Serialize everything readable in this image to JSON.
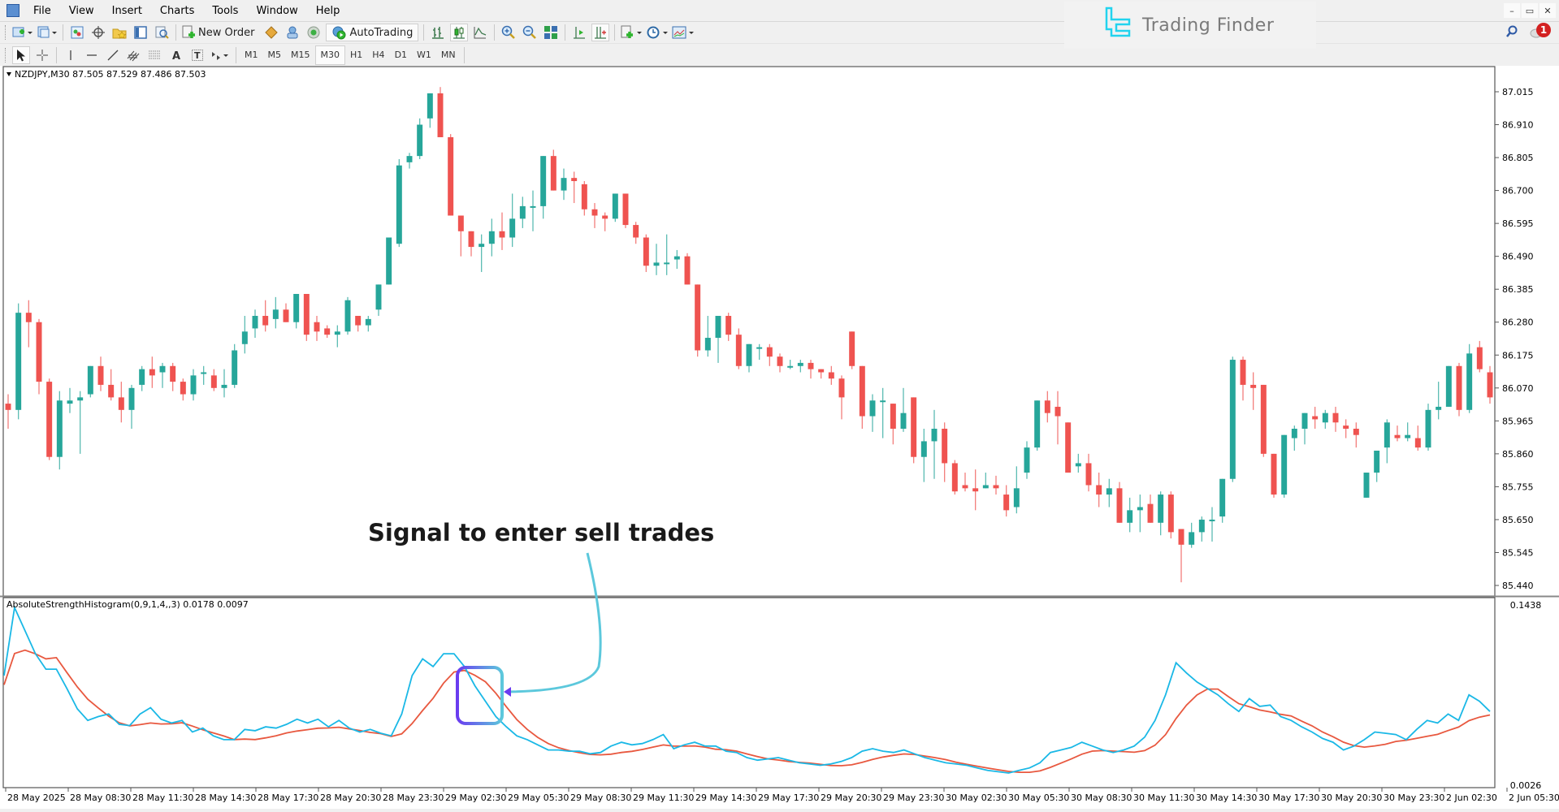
{
  "menu": {
    "items": [
      "File",
      "View",
      "Insert",
      "Charts",
      "Tools",
      "Window",
      "Help"
    ]
  },
  "window_controls": {
    "minimize": "–",
    "restore": "▭",
    "close": "✕"
  },
  "toolbar1": {
    "new_order_label": "New Order",
    "autotrading_label": "AutoTrading",
    "icons": [
      "new-chart-icon",
      "profiles-icon",
      "market-watch-icon",
      "data-window-icon",
      "navigator-icon",
      "terminal-icon",
      "strategy-tester-icon",
      "new-order-icon",
      "metaeditor-icon",
      "signals-icon",
      "market-icon",
      "autotrading-icon",
      "bar-chart-icon",
      "candlesticks-icon",
      "line-chart-icon",
      "zoom-in-icon",
      "zoom-out-icon",
      "tile-windows-icon",
      "chart-shift-icon",
      "autoscroll-icon",
      "indicators-icon",
      "periods-icon",
      "templates-icon"
    ]
  },
  "toolbar2": {
    "timeframes": [
      "M1",
      "M5",
      "M15",
      "M30",
      "H1",
      "H4",
      "D1",
      "W1",
      "MN"
    ],
    "active_timeframe": "M30",
    "drawing_tools": [
      "cursor-icon",
      "crosshair-icon",
      "vertical-line-icon",
      "horizontal-line-icon",
      "trendline-icon",
      "equidistant-channel-icon",
      "fibonacci-icon",
      "text-icon",
      "text-label-icon",
      "arrows-icon"
    ]
  },
  "brand": {
    "name": "Trading Finder",
    "accent": "#22d3ee"
  },
  "notifications": {
    "count": "1"
  },
  "chart": {
    "header": "NZDJPY,M30  87.505 87.529 87.486 87.503",
    "symbol": "NZDJPY",
    "timeframe": "M30",
    "ohlc": {
      "open": "87.505",
      "high": "87.529",
      "low": "87.486",
      "close": "87.503"
    },
    "annotation": "Signal to enter sell trades",
    "colors": {
      "bull": "#26a69a",
      "bear": "#ef5350",
      "indicator_main": "#1ab8e6",
      "indicator_signal": "#e8583f",
      "frame_purple": "#6a3cf0",
      "frame_cyan": "#5cc8dc"
    }
  },
  "indicator": {
    "label": "AbsoluteStrengthHistogram(0,9,1,4,,3) 0.0178 0.0097",
    "name": "AbsoluteStrengthHistogram",
    "params": "(0,9,1,4,,3)",
    "value1": "0.0178",
    "value2": "0.0097",
    "axis_max": "0.1438",
    "axis_min": "0.0026"
  },
  "chart_data": {
    "type": "candlestick",
    "title": "NZDJPY,M30",
    "price_axis": {
      "ticks": [
        "87.015",
        "86.910",
        "86.805",
        "86.700",
        "86.595",
        "86.490",
        "86.385",
        "86.280",
        "86.175",
        "86.070",
        "85.965",
        "85.860",
        "85.755",
        "85.650",
        "85.545",
        "85.440"
      ],
      "range": [
        85.4,
        87.08
      ]
    },
    "time_axis": [
      "28 May 2025",
      "28 May 08:30",
      "28 May 11:30",
      "28 May 14:30",
      "28 May 17:30",
      "28 May 20:30",
      "28 May 23:30",
      "29 May 02:30",
      "29 May 05:30",
      "29 May 08:30",
      "29 May 11:30",
      "29 May 14:30",
      "29 May 17:30",
      "29 May 20:30",
      "29 May 23:30",
      "30 May 02:30",
      "30 May 05:30",
      "30 May 08:30",
      "30 May 11:30",
      "30 May 14:30",
      "30 May 17:30",
      "30 May 20:30",
      "30 May 23:30",
      "2 Jun 02:30",
      "2 Jun 05:30"
    ],
    "candles": [
      [
        86.02,
        86.05,
        85.94,
        86.0
      ],
      [
        86.0,
        86.34,
        85.97,
        86.31
      ],
      [
        86.31,
        86.35,
        86.2,
        86.28
      ],
      [
        86.28,
        86.29,
        86.05,
        86.09
      ],
      [
        86.09,
        86.1,
        85.84,
        85.85
      ],
      [
        85.85,
        86.06,
        85.81,
        86.03
      ],
      [
        86.02,
        86.07,
        85.99,
        86.03
      ],
      [
        86.03,
        86.06,
        85.86,
        86.04
      ],
      [
        86.05,
        86.12,
        86.04,
        86.14
      ],
      [
        86.14,
        86.17,
        86.06,
        86.08
      ],
      [
        86.08,
        86.13,
        86.03,
        86.04
      ],
      [
        86.04,
        86.09,
        85.96,
        86.0
      ],
      [
        86.0,
        86.08,
        85.94,
        86.07
      ],
      [
        86.08,
        86.14,
        86.06,
        86.13
      ],
      [
        86.13,
        86.17,
        86.07,
        86.11
      ],
      [
        86.12,
        86.15,
        86.07,
        86.14
      ],
      [
        86.14,
        86.15,
        86.06,
        86.09
      ],
      [
        86.09,
        86.1,
        86.03,
        86.05
      ],
      [
        86.05,
        86.13,
        86.03,
        86.11
      ],
      [
        86.12,
        86.14,
        86.08,
        86.12
      ],
      [
        86.11,
        86.13,
        86.06,
        86.07
      ],
      [
        86.07,
        86.13,
        86.04,
        86.08
      ],
      [
        86.08,
        86.21,
        86.07,
        86.19
      ],
      [
        86.21,
        86.3,
        86.18,
        86.25
      ],
      [
        86.26,
        86.32,
        86.23,
        86.3
      ],
      [
        86.3,
        86.35,
        86.25,
        86.27
      ],
      [
        86.29,
        86.36,
        86.26,
        86.32
      ],
      [
        86.32,
        86.34,
        86.28,
        86.28
      ],
      [
        86.28,
        86.37,
        86.26,
        86.37
      ],
      [
        86.37,
        86.37,
        86.22,
        86.24
      ],
      [
        86.28,
        86.3,
        86.22,
        86.25
      ],
      [
        86.26,
        86.27,
        86.23,
        86.24
      ],
      [
        86.24,
        86.27,
        86.2,
        86.25
      ],
      [
        86.25,
        86.36,
        86.24,
        86.35
      ],
      [
        86.3,
        86.3,
        86.25,
        86.27
      ],
      [
        86.27,
        86.3,
        86.25,
        86.29
      ],
      [
        86.32,
        86.36,
        86.3,
        86.4
      ],
      [
        86.4,
        86.55,
        86.4,
        86.55
      ],
      [
        86.53,
        86.8,
        86.52,
        86.78
      ],
      [
        86.79,
        86.82,
        86.77,
        86.81
      ],
      [
        86.81,
        86.93,
        86.8,
        86.91
      ],
      [
        86.93,
        87.01,
        86.9,
        87.01
      ],
      [
        87.01,
        87.03,
        86.88,
        86.87
      ],
      [
        86.87,
        86.88,
        86.64,
        86.62
      ],
      [
        86.62,
        86.6,
        86.49,
        86.57
      ],
      [
        86.57,
        86.57,
        86.49,
        86.52
      ],
      [
        86.52,
        86.56,
        86.44,
        86.53
      ],
      [
        86.53,
        86.61,
        86.49,
        86.57
      ],
      [
        86.57,
        86.63,
        86.51,
        86.55
      ],
      [
        86.55,
        86.69,
        86.52,
        86.61
      ],
      [
        86.61,
        86.68,
        86.58,
        86.65
      ],
      [
        86.65,
        86.7,
        86.57,
        86.65
      ],
      [
        86.65,
        86.81,
        86.61,
        86.81
      ],
      [
        86.81,
        86.83,
        86.7,
        86.7
      ],
      [
        86.7,
        86.77,
        86.67,
        86.74
      ],
      [
        86.74,
        86.76,
        86.66,
        86.73
      ],
      [
        86.72,
        86.73,
        86.62,
        86.64
      ],
      [
        86.64,
        86.66,
        86.58,
        86.62
      ],
      [
        86.62,
        86.63,
        86.57,
        86.61
      ],
      [
        86.61,
        86.69,
        86.6,
        86.69
      ],
      [
        86.69,
        86.69,
        86.58,
        86.59
      ],
      [
        86.59,
        86.6,
        86.53,
        86.55
      ],
      [
        86.55,
        86.56,
        86.44,
        86.46
      ],
      [
        86.46,
        86.53,
        86.43,
        86.47
      ],
      [
        86.47,
        86.56,
        86.43,
        86.47
      ],
      [
        86.48,
        86.51,
        86.45,
        86.49
      ],
      [
        86.49,
        86.5,
        86.4,
        86.4
      ],
      [
        86.4,
        86.4,
        86.17,
        86.19
      ],
      [
        86.19,
        86.3,
        86.17,
        86.23
      ],
      [
        86.23,
        86.29,
        86.15,
        86.3
      ],
      [
        86.3,
        86.31,
        86.22,
        86.24
      ],
      [
        86.24,
        86.26,
        86.13,
        86.14
      ],
      [
        86.14,
        86.21,
        86.12,
        86.21
      ],
      [
        86.2,
        86.21,
        86.16,
        86.2
      ],
      [
        86.2,
        86.21,
        86.14,
        86.17
      ],
      [
        86.17,
        86.18,
        86.12,
        86.14
      ],
      [
        86.14,
        86.16,
        86.13,
        86.14
      ],
      [
        86.14,
        86.16,
        86.12,
        86.15
      ],
      [
        86.15,
        86.16,
        86.1,
        86.13
      ],
      [
        86.13,
        86.13,
        86.1,
        86.12
      ],
      [
        86.12,
        86.14,
        86.08,
        86.1
      ],
      [
        86.1,
        86.11,
        85.97,
        86.04
      ],
      [
        86.25,
        86.25,
        86.13,
        86.14
      ],
      [
        86.14,
        86.13,
        85.94,
        85.98
      ],
      [
        85.98,
        86.05,
        85.93,
        86.03
      ],
      [
        86.03,
        86.07,
        85.91,
        86.03
      ],
      [
        86.02,
        86.02,
        85.89,
        85.94
      ],
      [
        85.94,
        86.07,
        85.93,
        85.99
      ],
      [
        86.04,
        86.04,
        85.83,
        85.85
      ],
      [
        85.85,
        85.94,
        85.77,
        85.9
      ],
      [
        85.9,
        86.0,
        85.78,
        85.94
      ],
      [
        85.94,
        85.96,
        85.77,
        85.83
      ],
      [
        85.83,
        85.84,
        85.73,
        85.74
      ],
      [
        85.76,
        85.8,
        85.74,
        85.75
      ],
      [
        85.75,
        85.81,
        85.68,
        85.74
      ],
      [
        85.75,
        85.8,
        85.75,
        85.76
      ],
      [
        85.76,
        85.79,
        85.73,
        85.75
      ],
      [
        85.73,
        85.76,
        85.66,
        85.68
      ],
      [
        85.69,
        85.82,
        85.67,
        85.75
      ],
      [
        85.8,
        85.9,
        85.78,
        85.88
      ],
      [
        85.88,
        86.02,
        85.87,
        86.03
      ],
      [
        86.03,
        86.06,
        85.96,
        85.99
      ],
      [
        86.01,
        86.06,
        85.89,
        85.98
      ],
      [
        85.96,
        85.96,
        85.81,
        85.8
      ],
      [
        85.82,
        85.86,
        85.8,
        85.83
      ],
      [
        85.83,
        85.86,
        85.74,
        85.76
      ],
      [
        85.76,
        85.8,
        85.69,
        85.73
      ],
      [
        85.73,
        85.78,
        85.69,
        85.75
      ],
      [
        85.75,
        85.77,
        85.65,
        85.64
      ],
      [
        85.64,
        85.72,
        85.61,
        85.68
      ],
      [
        85.68,
        85.73,
        85.61,
        85.69
      ],
      [
        85.7,
        85.73,
        85.64,
        85.64
      ],
      [
        85.64,
        85.74,
        85.6,
        85.73
      ],
      [
        85.73,
        85.74,
        85.59,
        85.61
      ],
      [
        85.62,
        85.62,
        85.45,
        85.57
      ],
      [
        85.57,
        85.64,
        85.56,
        85.61
      ],
      [
        85.61,
        85.66,
        85.58,
        85.65
      ],
      [
        85.65,
        85.69,
        85.58,
        85.65
      ],
      [
        85.66,
        85.78,
        85.64,
        85.78
      ],
      [
        85.78,
        86.17,
        85.77,
        86.16
      ],
      [
        86.16,
        86.17,
        86.03,
        86.08
      ],
      [
        86.08,
        86.12,
        86.0,
        86.07
      ],
      [
        86.08,
        86.07,
        85.85,
        85.86
      ],
      [
        85.86,
        85.86,
        85.72,
        85.73
      ],
      [
        85.73,
        85.92,
        85.72,
        85.92
      ],
      [
        85.91,
        85.95,
        85.87,
        85.94
      ],
      [
        85.94,
        85.99,
        85.89,
        85.99
      ],
      [
        85.98,
        86.01,
        85.94,
        85.97
      ],
      [
        85.96,
        86.0,
        85.94,
        85.99
      ],
      [
        85.99,
        86.01,
        85.93,
        85.96
      ],
      [
        85.95,
        85.97,
        85.91,
        85.94
      ],
      [
        85.94,
        85.96,
        85.88,
        85.92
      ],
      [
        85.72,
        85.79,
        85.73,
        85.8
      ],
      [
        85.8,
        85.86,
        85.77,
        85.87
      ],
      [
        85.88,
        85.97,
        85.83,
        85.96
      ],
      [
        85.92,
        85.95,
        85.9,
        85.91
      ],
      [
        85.91,
        85.96,
        85.9,
        85.92
      ],
      [
        85.91,
        85.95,
        85.87,
        85.88
      ],
      [
        85.88,
        86.02,
        85.87,
        86.0
      ],
      [
        86.0,
        86.09,
        85.97,
        86.01
      ],
      [
        86.01,
        86.14,
        86.01,
        86.14
      ],
      [
        86.14,
        86.15,
        85.98,
        86.0
      ],
      [
        86.0,
        86.21,
        85.99,
        86.18
      ],
      [
        86.2,
        86.22,
        86.12,
        86.13
      ],
      [
        86.12,
        86.14,
        86.02,
        86.04
      ]
    ],
    "indicator_series": {
      "main_color": "#1ab8e6",
      "signal_color": "#e8583f",
      "main": [
        0.09,
        0.143,
        0.125,
        0.107,
        0.095,
        0.095,
        0.08,
        0.064,
        0.055,
        0.058,
        0.06,
        0.052,
        0.051,
        0.06,
        0.065,
        0.056,
        0.053,
        0.055,
        0.046,
        0.049,
        0.043,
        0.04,
        0.04,
        0.048,
        0.047,
        0.05,
        0.049,
        0.052,
        0.056,
        0.053,
        0.056,
        0.05,
        0.055,
        0.049,
        0.046,
        0.048,
        0.045,
        0.043,
        0.06,
        0.09,
        0.103,
        0.097,
        0.107,
        0.107,
        0.097,
        0.082,
        0.07,
        0.058,
        0.05,
        0.043,
        0.04,
        0.036,
        0.032,
        0.032,
        0.031,
        0.031,
        0.029,
        0.03,
        0.035,
        0.038,
        0.036,
        0.037,
        0.04,
        0.044,
        0.033,
        0.036,
        0.038,
        0.035,
        0.035,
        0.031,
        0.03,
        0.026,
        0.024,
        0.025,
        0.026,
        0.024,
        0.022,
        0.021,
        0.02,
        0.021,
        0.023,
        0.026,
        0.031,
        0.033,
        0.031,
        0.03,
        0.032,
        0.029,
        0.026,
        0.024,
        0.022,
        0.021,
        0.02,
        0.018,
        0.016,
        0.015,
        0.014,
        0.016,
        0.018,
        0.022,
        0.03,
        0.032,
        0.034,
        0.038,
        0.035,
        0.032,
        0.03,
        0.032,
        0.035,
        0.042,
        0.055,
        0.075,
        0.1,
        0.092,
        0.085,
        0.08,
        0.075,
        0.068,
        0.062,
        0.072,
        0.066,
        0.067,
        0.058,
        0.055,
        0.05,
        0.046,
        0.041,
        0.038,
        0.032,
        0.035,
        0.04,
        0.046,
        0.045,
        0.044,
        0.04,
        0.048,
        0.055,
        0.053,
        0.06,
        0.055,
        0.075,
        0.07,
        0.062
      ]
    }
  },
  "time_labels_positions_note": "labels every 3h"
}
